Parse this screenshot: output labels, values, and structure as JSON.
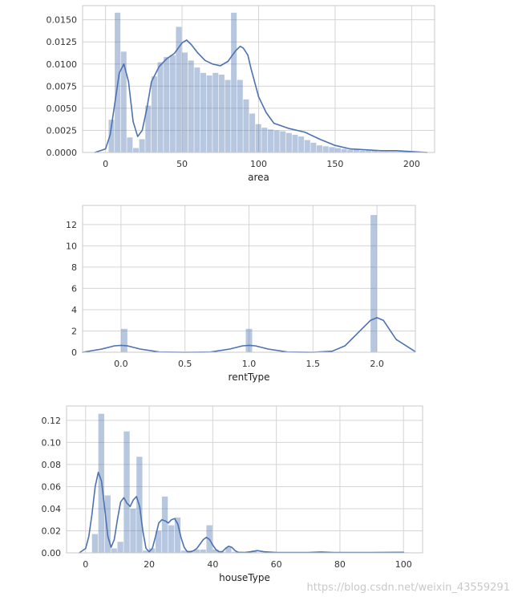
{
  "watermark": "https://blog.csdn.net/weixin_43559291",
  "colors": {
    "bar": "#4c72b0",
    "bar_opacity": 0.4,
    "kde": "#4c72b0",
    "grid": "#d5d5d5",
    "frame": "#c8c8c8"
  },
  "chart_data": [
    {
      "type": "bar",
      "kind": "histogram-with-kde",
      "xlabel": "area",
      "xlim": [
        -15,
        215
      ],
      "ylim": [
        0,
        0.0166
      ],
      "xticks": [
        0,
        50,
        100,
        150,
        200
      ],
      "xtick_labels": [
        "0",
        "50",
        "100",
        "150",
        "200"
      ],
      "yticks": [
        0,
        0.0025,
        0.005,
        0.0075,
        0.01,
        0.0125,
        0.015
      ],
      "ytick_labels": [
        "0.0000",
        "0.0025",
        "0.0050",
        "0.0075",
        "0.0100",
        "0.0125",
        "0.0150"
      ],
      "grid": true,
      "bins": {
        "start": 2,
        "width": 4,
        "values": [
          0.0037,
          0.0158,
          0.0114,
          0.0017,
          0.0005,
          0.0015,
          0.0053,
          0.0086,
          0.0102,
          0.0108,
          0.011,
          0.0142,
          0.0113,
          0.0104,
          0.0096,
          0.009,
          0.0087,
          0.009,
          0.0088,
          0.0082,
          0.0158,
          0.0082,
          0.006,
          0.0044,
          0.0032,
          0.0028,
          0.0026,
          0.0025,
          0.0024,
          0.0022,
          0.002,
          0.0018,
          0.0014,
          0.0011,
          0.0008,
          0.0007,
          0.0006,
          0.0005,
          0.0004,
          0.0003,
          0.0003,
          0.0002,
          0.0002,
          0.0002,
          0.0001,
          0.0001,
          0.0001,
          0.0001,
          0.0001,
          5e-05
        ]
      },
      "kde": {
        "x": [
          -7,
          0,
          3,
          6,
          9,
          12,
          15,
          18,
          21,
          24,
          27,
          30,
          35,
          40,
          45,
          50,
          53,
          56,
          60,
          65,
          70,
          75,
          80,
          85,
          88,
          90,
          93,
          95,
          100,
          105,
          110,
          120,
          130,
          140,
          150,
          160,
          170,
          180,
          190,
          200,
          210
        ],
        "y": [
          0.0,
          0.0004,
          0.002,
          0.0055,
          0.009,
          0.01,
          0.008,
          0.0035,
          0.0018,
          0.0025,
          0.005,
          0.008,
          0.0097,
          0.0106,
          0.0112,
          0.0124,
          0.0127,
          0.0122,
          0.0113,
          0.0104,
          0.01,
          0.0098,
          0.0103,
          0.0115,
          0.012,
          0.0118,
          0.011,
          0.0095,
          0.0063,
          0.0045,
          0.0033,
          0.0027,
          0.0023,
          0.0015,
          0.0008,
          0.0004,
          0.0003,
          0.0002,
          0.0002,
          0.0001,
          0.0
        ]
      }
    },
    {
      "type": "bar",
      "kind": "histogram-with-kde",
      "xlabel": "rentType",
      "xlim": [
        -0.3,
        2.3
      ],
      "ylim": [
        0,
        13.8
      ],
      "xticks": [
        0,
        0.5,
        1,
        1.5,
        2
      ],
      "xtick_labels": [
        "0.0",
        "0.5",
        "1.0",
        "1.5",
        "2.0"
      ],
      "yticks": [
        0,
        2,
        4,
        6,
        8,
        10,
        12
      ],
      "ytick_labels": [
        "0",
        "2",
        "4",
        "6",
        "8",
        "10",
        "12"
      ],
      "grid": true,
      "bars": [
        {
          "x0": 0.0,
          "x1": 0.05,
          "value": 2.2
        },
        {
          "x0": 0.975,
          "x1": 1.025,
          "value": 2.2
        },
        {
          "x0": 1.95,
          "x1": 2.0,
          "value": 12.9
        }
      ],
      "kde": {
        "x": [
          -0.3,
          -0.15,
          -0.05,
          0.0,
          0.05,
          0.15,
          0.3,
          0.5,
          0.7,
          0.85,
          0.95,
          1.0,
          1.05,
          1.15,
          1.3,
          1.5,
          1.65,
          1.75,
          1.85,
          1.95,
          2.0,
          2.05,
          2.15,
          2.3
        ],
        "y": [
          0.0,
          0.3,
          0.6,
          0.65,
          0.6,
          0.3,
          0.02,
          0.0,
          0.02,
          0.3,
          0.6,
          0.65,
          0.6,
          0.3,
          0.02,
          0.0,
          0.1,
          0.6,
          1.8,
          3.0,
          3.25,
          3.0,
          1.2,
          0.05
        ]
      }
    },
    {
      "type": "bar",
      "kind": "histogram-with-kde",
      "xlabel": "houseType",
      "xlim": [
        -6,
        106
      ],
      "ylim": [
        0,
        0.133
      ],
      "xticks": [
        0,
        20,
        40,
        60,
        80,
        100
      ],
      "xtick_labels": [
        "0",
        "20",
        "40",
        "60",
        "80",
        "100"
      ],
      "yticks": [
        0,
        0.02,
        0.04,
        0.06,
        0.08,
        0.1,
        0.12
      ],
      "ytick_labels": [
        "0.00",
        "0.02",
        "0.04",
        "0.06",
        "0.08",
        "0.10",
        "0.12"
      ],
      "grid": true,
      "bins": {
        "start": 2,
        "width": 2,
        "values": [
          0.017,
          0.126,
          0.052,
          0.004,
          0.01,
          0.11,
          0.04,
          0.087,
          0.002,
          0.004,
          0.02,
          0.051,
          0.025,
          0.032,
          0.002,
          0.002,
          0.003,
          0.003,
          0.025,
          0.003,
          0.001,
          0.005,
          0.001,
          0.001,
          0.001,
          0.002,
          0.0005,
          0.0005,
          0.0005,
          0.0005,
          0.0005,
          0.0005,
          0.0005,
          0.0005,
          0.0005,
          0.0005,
          0.0005,
          0.0005,
          0.0005,
          0.0005,
          0.0005,
          0.0005,
          0.0005,
          0.0005,
          0.0005,
          0.0005,
          0.0005,
          0.0005,
          0.0005,
          0.0005
        ]
      },
      "kde": {
        "x": [
          -2,
          0,
          1,
          2,
          3,
          4,
          5,
          6,
          7,
          8,
          9,
          10,
          11,
          12,
          13,
          14,
          15,
          16,
          17,
          18,
          19,
          20,
          21,
          22,
          23,
          24,
          25,
          26,
          27,
          28,
          29,
          30,
          31,
          32,
          33,
          34,
          35,
          36,
          37,
          38,
          39,
          40,
          41,
          42,
          43,
          44,
          45,
          46,
          47,
          48,
          50,
          52,
          54,
          56,
          60,
          70,
          74,
          78,
          90,
          100
        ],
        "y": [
          0.0,
          0.004,
          0.015,
          0.035,
          0.06,
          0.073,
          0.065,
          0.04,
          0.015,
          0.005,
          0.012,
          0.03,
          0.046,
          0.05,
          0.045,
          0.042,
          0.048,
          0.051,
          0.042,
          0.02,
          0.004,
          0.001,
          0.004,
          0.015,
          0.027,
          0.03,
          0.029,
          0.027,
          0.03,
          0.031,
          0.026,
          0.014,
          0.005,
          0.001,
          0.001,
          0.002,
          0.004,
          0.008,
          0.012,
          0.014,
          0.012,
          0.007,
          0.003,
          0.001,
          0.001,
          0.004,
          0.006,
          0.005,
          0.002,
          0.0005,
          0.0003,
          0.001,
          0.002,
          0.001,
          0.0003,
          0.0003,
          0.0008,
          0.0003,
          0.0003,
          0.0005
        ]
      }
    }
  ]
}
